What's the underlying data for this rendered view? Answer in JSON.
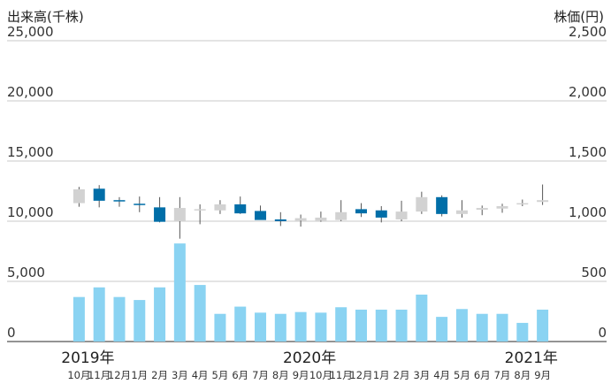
{
  "left_axis_title": "出来高(千株)",
  "right_axis_title": "株価(円)",
  "chart_data": [
    {
      "type": "bar",
      "ylabel": "出来高(千株)",
      "ylim": [
        0,
        25000
      ],
      "yticks": [
        0,
        5000,
        10000,
        15000,
        20000,
        25000
      ],
      "ytick_labels": [
        "0",
        "5,000",
        "10,000",
        "15,000",
        "20,000",
        "25,000"
      ],
      "categories": [
        "10月",
        "11月",
        "12月",
        "1月",
        "2月",
        "3月",
        "4月",
        "5月",
        "6月",
        "7月",
        "8月",
        "9月",
        "10月",
        "11月",
        "12月",
        "1月",
        "2月",
        "3月",
        "4月",
        "5月",
        "6月",
        "7月",
        "8月",
        "9月"
      ],
      "values": [
        3700,
        4500,
        3700,
        3450,
        4500,
        8150,
        4700,
        2300,
        2900,
        2400,
        2300,
        2450,
        2400,
        2850,
        2650,
        2650,
        2650,
        3900,
        2050,
        2700,
        2300,
        2300,
        1550,
        2650
      ],
      "color": "#8ad3f2"
    },
    {
      "type": "candlestick",
      "ylabel": "株価(円)",
      "ylim": [
        0,
        2500
      ],
      "yticks": [
        0,
        500,
        1000,
        1500,
        2000,
        2500
      ],
      "ytick_labels": [
        "0",
        "500",
        "1,000",
        "1,500",
        "2,000",
        "2,500"
      ],
      "categories": [
        "10月",
        "11月",
        "12月",
        "1月",
        "2月",
        "3月",
        "4月",
        "5月",
        "6月",
        "7月",
        "8月",
        "9月",
        "10月",
        "11月",
        "12月",
        "1月",
        "2月",
        "3月",
        "4月",
        "5月",
        "6月",
        "7月",
        "8月",
        "9月"
      ],
      "open": [
        1150,
        1270,
        1175,
        1145,
        1115,
        1000,
        1090,
        1090,
        1140,
        1085,
        1015,
        1005,
        1005,
        1010,
        1100,
        1090,
        1015,
        1080,
        1200,
        1060,
        1095,
        1105,
        1145,
        1160
      ],
      "high": [
        1285,
        1300,
        1200,
        1205,
        1200,
        1200,
        1140,
        1175,
        1205,
        1130,
        1075,
        1055,
        1080,
        1175,
        1150,
        1125,
        1170,
        1245,
        1215,
        1175,
        1130,
        1145,
        1180,
        1305
      ],
      "low": [
        1120,
        1115,
        1120,
        1075,
        990,
        855,
        975,
        1060,
        1060,
        1020,
        960,
        955,
        995,
        1000,
        1035,
        990,
        1000,
        1060,
        1040,
        1030,
        1050,
        1070,
        1125,
        1135
      ],
      "close": [
        1265,
        1170,
        1165,
        1135,
        995,
        1110,
        1100,
        1140,
        1065,
        1010,
        1000,
        1025,
        1030,
        1075,
        1065,
        1030,
        1080,
        1200,
        1060,
        1090,
        1110,
        1125,
        1150,
        1175
      ],
      "up_color": "#d2d2d2",
      "down_color": "#006ea8"
    }
  ],
  "x_axis": {
    "months": [
      "10月",
      "11月",
      "12月",
      "1月",
      "2月",
      "3月",
      "4月",
      "5月",
      "6月",
      "7月",
      "8月",
      "9月",
      "10月",
      "11月",
      "12月",
      "1月",
      "2月",
      "3月",
      "4月",
      "5月",
      "6月",
      "7月",
      "8月",
      "9月"
    ],
    "years": [
      {
        "label": "2019年",
        "index": 0
      },
      {
        "label": "2020年",
        "index": 11
      },
      {
        "label": "2021年",
        "index": 22
      }
    ]
  }
}
